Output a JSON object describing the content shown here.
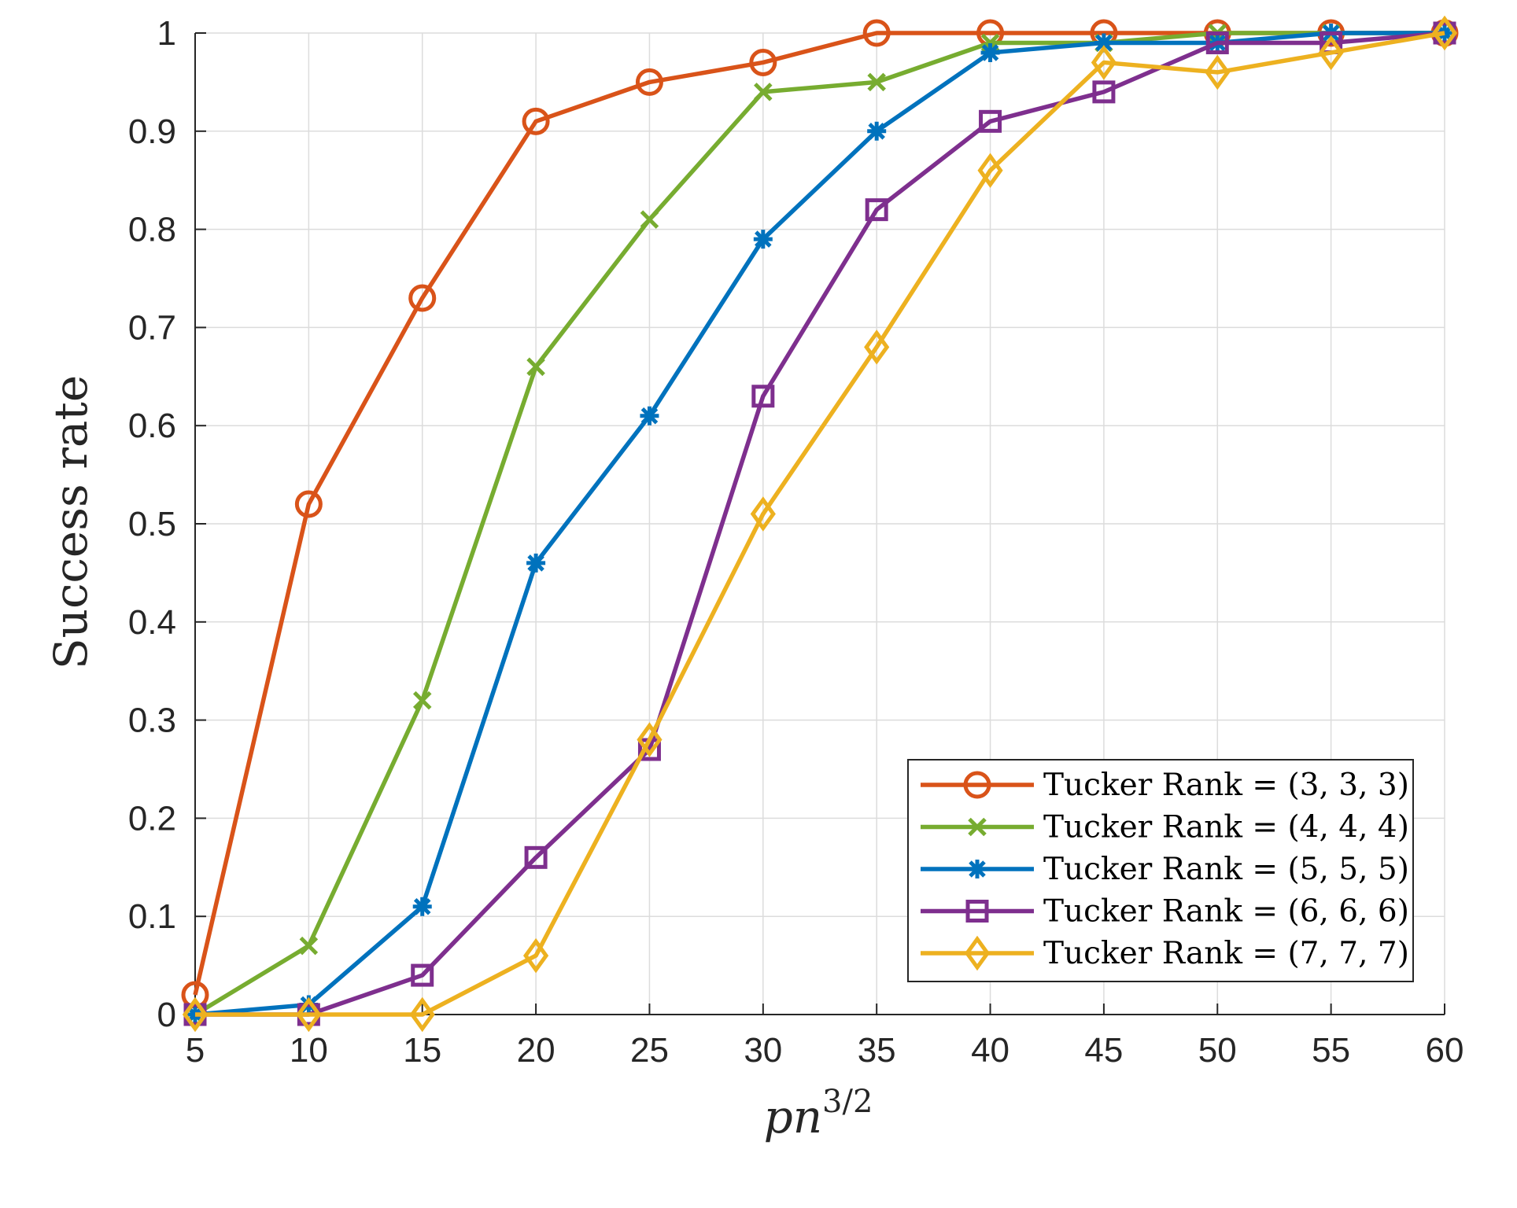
{
  "chart_data": {
    "type": "line",
    "xlabel": {
      "main": "pn",
      "sup": "3/2"
    },
    "ylabel": "Success rate",
    "x": [
      5,
      10,
      15,
      20,
      25,
      30,
      35,
      40,
      45,
      50,
      55,
      60
    ],
    "xlim": [
      5,
      60
    ],
    "ylim": [
      0,
      1
    ],
    "xticks": [
      "5",
      "10",
      "15",
      "20",
      "25",
      "30",
      "35",
      "40",
      "45",
      "50",
      "55",
      "60"
    ],
    "yticks": [
      "0",
      "0.1",
      "0.2",
      "0.3",
      "0.4",
      "0.5",
      "0.6",
      "0.7",
      "0.8",
      "0.9",
      "1"
    ],
    "grid": true,
    "legend_position": "bottom-right",
    "series": [
      {
        "name": "Tucker Rank = (3, 3, 3)",
        "color": "#D95319",
        "marker": "circle",
        "values": [
          0.02,
          0.52,
          0.73,
          0.91,
          0.95,
          0.97,
          1.0,
          1.0,
          1.0,
          1.0,
          1.0,
          1.0
        ]
      },
      {
        "name": "Tucker Rank = (4, 4, 4)",
        "color": "#77AC30",
        "marker": "x",
        "values": [
          0.0,
          0.07,
          0.32,
          0.66,
          0.81,
          0.94,
          0.95,
          0.99,
          0.99,
          1.0,
          1.0,
          1.0
        ]
      },
      {
        "name": "Tucker Rank = (5, 5, 5)",
        "color": "#0072BD",
        "marker": "asterisk",
        "values": [
          0.0,
          0.01,
          0.11,
          0.46,
          0.61,
          0.79,
          0.9,
          0.98,
          0.99,
          0.99,
          1.0,
          1.0
        ]
      },
      {
        "name": "Tucker Rank = (6, 6, 6)",
        "color": "#7E2F8E",
        "marker": "square",
        "values": [
          0.0,
          0.0,
          0.04,
          0.16,
          0.27,
          0.63,
          0.82,
          0.91,
          0.94,
          0.99,
          0.99,
          1.0
        ]
      },
      {
        "name": "Tucker Rank = (7, 7, 7)",
        "color": "#EDB120",
        "marker": "diamond",
        "values": [
          0.0,
          0.0,
          0.0,
          0.06,
          0.28,
          0.51,
          0.68,
          0.86,
          0.97,
          0.96,
          0.98,
          1.0
        ]
      }
    ]
  }
}
